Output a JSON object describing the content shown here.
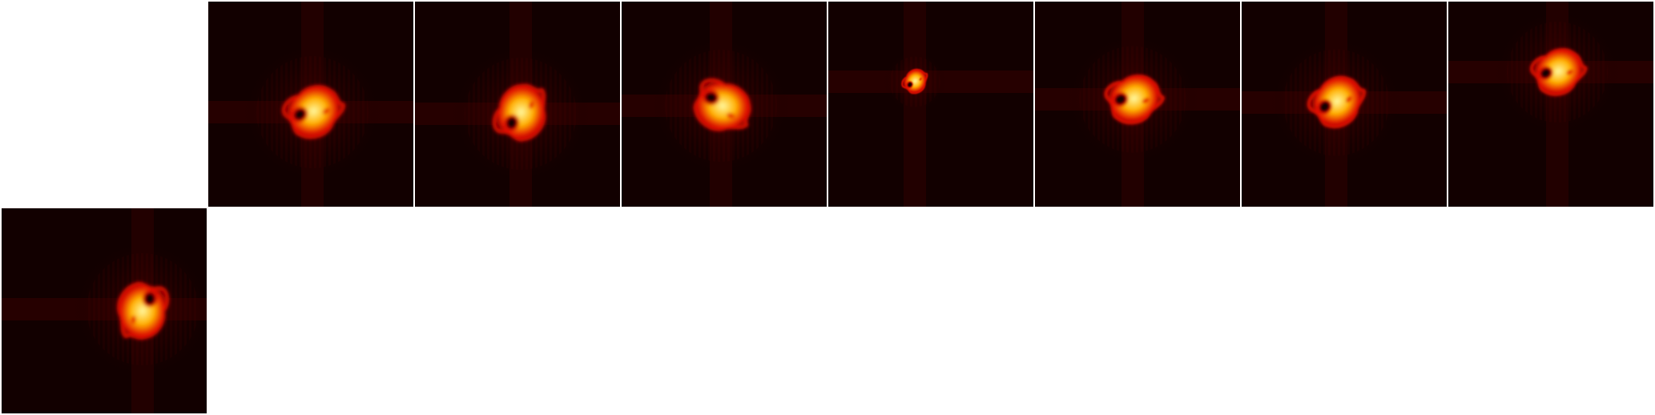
{
  "grid": {
    "rows": 2,
    "columns": 8,
    "empty_cells": [
      "row1-col1",
      "row2-col2",
      "row2-col3",
      "row2-col4",
      "row2-col5",
      "row2-col6",
      "row2-col7",
      "row2-col8"
    ]
  },
  "colormap": {
    "name": "hot",
    "background": "#120000",
    "low": "#5a0000",
    "mid": "#e01000",
    "high": "#ffb000",
    "peak": "#fff8a0"
  },
  "panels": [
    {
      "id": "panel-1",
      "row": 1,
      "col": 2,
      "content": "bright-blob-with-dark-hole",
      "orientation_deg": -40
    },
    {
      "id": "panel-2",
      "row": 1,
      "col": 3,
      "content": "bright-blob-with-dark-hole",
      "orientation_deg": -75
    },
    {
      "id": "panel-3",
      "row": 1,
      "col": 4,
      "content": "bright-blob-with-dark-hole",
      "orientation_deg": 10
    },
    {
      "id": "panel-4",
      "row": 1,
      "col": 5,
      "content": "small-bright-blob",
      "orientation_deg": -60
    },
    {
      "id": "panel-5",
      "row": 1,
      "col": 6,
      "content": "bright-blob-with-dark-hole",
      "orientation_deg": -30
    },
    {
      "id": "panel-6",
      "row": 1,
      "col": 7,
      "content": "bright-blob-with-dark-hole",
      "orientation_deg": -50
    },
    {
      "id": "panel-7",
      "row": 1,
      "col": 8,
      "content": "bright-blob-with-dark-hole",
      "orientation_deg": -35
    },
    {
      "id": "panel-8",
      "row": 2,
      "col": 1,
      "content": "bright-blob-with-dark-hole",
      "orientation_deg": 95
    }
  ]
}
